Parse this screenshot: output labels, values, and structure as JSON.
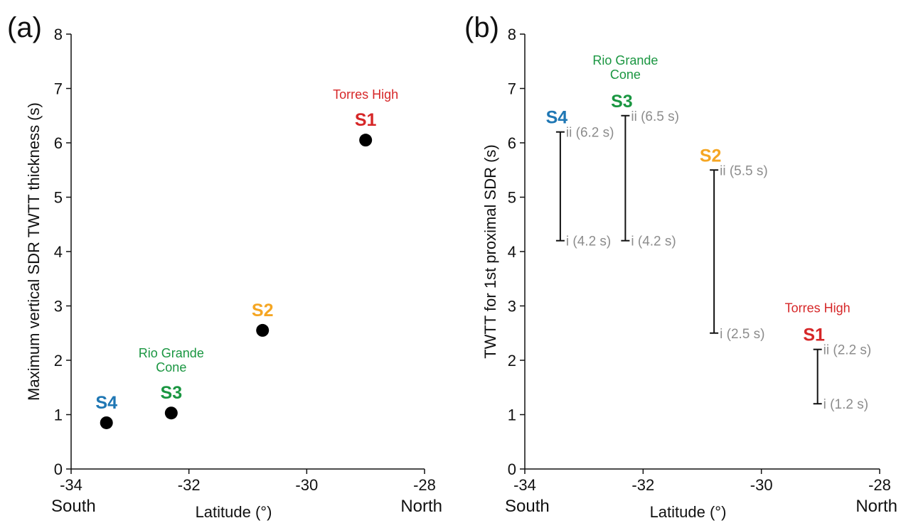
{
  "chart_data": [
    {
      "type": "scatter",
      "panel_label": "(a)",
      "xlabel": "Latitude (°)",
      "ylabel": "Maximum vertical SDR TWTT thickness (s)",
      "xlim": [
        -34,
        -28
      ],
      "ylim": [
        0,
        8
      ],
      "xticks": [
        -34,
        -32,
        -30,
        -28
      ],
      "yticks": [
        0,
        1,
        2,
        3,
        4,
        5,
        6,
        7,
        8
      ],
      "x_direction_left": "South",
      "x_direction_right": "North",
      "grid": false,
      "points": [
        {
          "name": "S4",
          "x": -33.4,
          "y": 0.85,
          "color": "#1f77b4",
          "region": ""
        },
        {
          "name": "S3",
          "x": -32.3,
          "y": 1.03,
          "color": "#1a9641",
          "region": "Rio Grande\nCone"
        },
        {
          "name": "S2",
          "x": -30.75,
          "y": 2.55,
          "color": "#f5a623",
          "region": ""
        },
        {
          "name": "S1",
          "x": -29.0,
          "y": 6.05,
          "color": "#d62728",
          "region": "Torres High"
        }
      ]
    },
    {
      "type": "range",
      "panel_label": "(b)",
      "xlabel": "Latitude (°)",
      "ylabel": "TWTT for 1st proximal SDR (s)",
      "xlim": [
        -34,
        -28
      ],
      "ylim": [
        0,
        8
      ],
      "xticks": [
        -34,
        -32,
        -30,
        -28
      ],
      "yticks": [
        0,
        1,
        2,
        3,
        4,
        5,
        6,
        7,
        8
      ],
      "x_direction_left": "South",
      "x_direction_right": "North",
      "grid": false,
      "ranges": [
        {
          "name": "S4",
          "x": -33.4,
          "low": 4.2,
          "high": 6.2,
          "low_label": "i (4.2 s)",
          "high_label": "ii (6.2 s)",
          "color": "#1f77b4",
          "region": ""
        },
        {
          "name": "S3",
          "x": -32.3,
          "low": 4.2,
          "high": 6.5,
          "low_label": "i (4.2 s)",
          "high_label": "ii (6.5 s)",
          "color": "#1a9641",
          "region": "Rio Grande\nCone"
        },
        {
          "name": "S2",
          "x": -30.8,
          "low": 2.5,
          "high": 5.5,
          "low_label": "i (2.5 s)",
          "high_label": "ii (5.5 s)",
          "color": "#f5a623",
          "region": ""
        },
        {
          "name": "S1",
          "x": -29.05,
          "low": 1.2,
          "high": 2.2,
          "low_label": "i (1.2 s)",
          "high_label": "ii (2.2 s)",
          "color": "#d62728",
          "region": "Torres High"
        }
      ]
    }
  ]
}
